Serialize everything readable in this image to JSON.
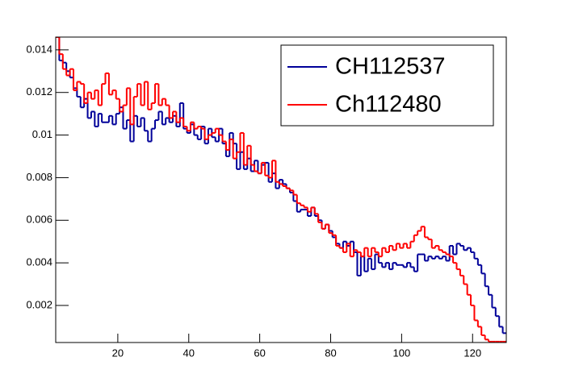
{
  "chart_data": {
    "type": "histogram",
    "bins": [
      2.5,
      3.5,
      4.5,
      5.5,
      6.5,
      7.5,
      8.5,
      9.5,
      10.5,
      11.5,
      12.5,
      13.5,
      14.5,
      15.5,
      16.5,
      17.5,
      18.5,
      19.5,
      20.5,
      21.5,
      22.5,
      23.5,
      24.5,
      25.5,
      26.5,
      27.5,
      28.5,
      29.5,
      30.5,
      31.5,
      32.5,
      33.5,
      34.5,
      35.5,
      36.5,
      37.5,
      38.5,
      39.5,
      40.5,
      41.5,
      42.5,
      43.5,
      44.5,
      45.5,
      46.5,
      47.5,
      48.5,
      49.5,
      50.5,
      51.5,
      52.5,
      53.5,
      54.5,
      55.5,
      56.5,
      57.5,
      58.5,
      59.5,
      60.5,
      61.5,
      62.5,
      63.5,
      64.5,
      65.5,
      66.5,
      67.5,
      68.5,
      69.5,
      70.5,
      71.5,
      72.5,
      73.5,
      74.5,
      75.5,
      76.5,
      77.5,
      78.5,
      79.5,
      80.5,
      81.5,
      82.5,
      83.5,
      84.5,
      85.5,
      86.5,
      87.5,
      88.5,
      89.5,
      90.5,
      91.5,
      92.5,
      93.5,
      94.5,
      95.5,
      96.5,
      97.5,
      98.5,
      99.5,
      100.5,
      101.5,
      102.5,
      103.5,
      104.5,
      105.5,
      106.5,
      107.5,
      108.5,
      109.5,
      110.5,
      111.5,
      112.5,
      113.5,
      114.5,
      115.5,
      116.5,
      117.5,
      118.5,
      119.5,
      120.5,
      121.5,
      122.5,
      123.5,
      124.5,
      125.5,
      126.5,
      127.5,
      128.5,
      129.5
    ],
    "series": [
      {
        "name": "CH112537",
        "color": "#000099",
        "values": [
          0.0146,
          0.0135,
          0.0134,
          0.013,
          0.0127,
          0.0122,
          0.0118,
          0.0113,
          0.0117,
          0.0108,
          0.0111,
          0.0104,
          0.011,
          0.0106,
          0.0106,
          0.0109,
          0.0105,
          0.011,
          0.0113,
          0.0103,
          0.0107,
          0.0097,
          0.0109,
          0.0104,
          0.0108,
          0.0102,
          0.0097,
          0.0103,
          0.0107,
          0.0111,
          0.0105,
          0.0108,
          0.0106,
          0.0109,
          0.0104,
          0.0115,
          0.0103,
          0.0101,
          0.0105,
          0.01,
          0.0098,
          0.0104,
          0.0096,
          0.0103,
          0.0099,
          0.0097,
          0.0103,
          0.0096,
          0.009,
          0.0101,
          0.0096,
          0.0084,
          0.0092,
          0.0084,
          0.0089,
          0.0083,
          0.0088,
          0.0082,
          0.0086,
          0.0087,
          0.0078,
          0.0082,
          0.0075,
          0.0079,
          0.0077,
          0.0075,
          0.0073,
          0.0069,
          0.0064,
          0.0065,
          0.0065,
          0.0062,
          0.0066,
          0.0062,
          0.006,
          0.0056,
          0.0058,
          0.0055,
          0.0052,
          0.0049,
          0.0047,
          0.005,
          0.0048,
          0.005,
          0.0045,
          0.0034,
          0.0043,
          0.0036,
          0.0042,
          0.0037,
          0.0044,
          0.004,
          0.0038,
          0.004,
          0.0037,
          0.004,
          0.0039,
          0.0039,
          0.0038,
          0.004,
          0.0038,
          0.0036,
          0.0044,
          0.0044,
          0.0041,
          0.0043,
          0.0042,
          0.0043,
          0.0042,
          0.0043,
          0.0041,
          0.0048,
          0.0044,
          0.0049,
          0.0048,
          0.0046,
          0.0047,
          0.0045,
          0.0042,
          0.0039,
          0.0035,
          0.0029,
          0.0025,
          0.0019,
          0.0015,
          0.001,
          0.0007
        ]
      },
      {
        "name": "Ch112480",
        "color": "#ff0000",
        "values": [
          0.0146,
          0.0138,
          0.0131,
          0.0128,
          0.0131,
          0.0121,
          0.0125,
          0.0124,
          0.0115,
          0.012,
          0.0117,
          0.0121,
          0.0114,
          0.0124,
          0.0129,
          0.0119,
          0.0121,
          0.0117,
          0.0111,
          0.0114,
          0.0122,
          0.0105,
          0.0118,
          0.0124,
          0.0114,
          0.0125,
          0.0112,
          0.0115,
          0.0124,
          0.0114,
          0.0117,
          0.0114,
          0.0108,
          0.0111,
          0.0106,
          0.0108,
          0.0104,
          0.0102,
          0.0106,
          0.0103,
          0.0104,
          0.0103,
          0.0098,
          0.01,
          0.0101,
          0.0103,
          0.01,
          0.0097,
          0.0093,
          0.0098,
          0.0089,
          0.0092,
          0.0101,
          0.0086,
          0.0095,
          0.0086,
          0.0083,
          0.0082,
          0.0087,
          0.0081,
          0.008,
          0.0088,
          0.0078,
          0.0077,
          0.0076,
          0.0075,
          0.0074,
          0.0072,
          0.0068,
          0.0067,
          0.0066,
          0.0064,
          0.0066,
          0.0063,
          0.0059,
          0.0056,
          0.0058,
          0.0054,
          0.0053,
          0.0048,
          0.0047,
          0.0045,
          0.0049,
          0.0043,
          0.0046,
          0.0045,
          0.0043,
          0.0047,
          0.0043,
          0.0047,
          0.0045,
          0.0043,
          0.0047,
          0.0045,
          0.0048,
          0.0046,
          0.0049,
          0.0047,
          0.0049,
          0.0047,
          0.005,
          0.0053,
          0.0055,
          0.0057,
          0.0052,
          0.0051,
          0.0047,
          0.0048,
          0.0046,
          0.0045,
          0.0044,
          0.0043,
          0.004,
          0.0037,
          0.0034,
          0.003,
          0.0025,
          0.002,
          0.0013,
          0.001,
          0.0006,
          0.0004,
          0.0003,
          0.0003,
          0.0003,
          0.0003,
          0.0003
        ]
      }
    ],
    "xlim": [
      2.5,
      129.5
    ],
    "ylim": [
      0.00026,
      0.0146
    ],
    "xticks": [
      20,
      40,
      60,
      80,
      100,
      120
    ],
    "yticks": [
      0.002,
      0.004,
      0.006,
      0.008,
      0.01,
      0.012,
      0.014
    ],
    "legend": "top-right"
  }
}
